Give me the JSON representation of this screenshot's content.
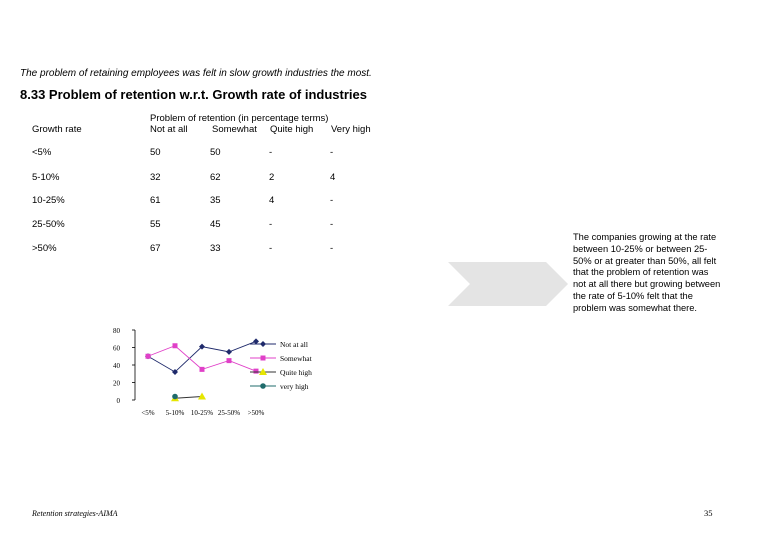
{
  "intro_text": "The problem of retaining employees was felt in slow growth industries the most.",
  "section_title": "8.33 Problem of retention w.r.t. Growth rate of industries",
  "table": {
    "super_header": "Problem of retention (in percentage terms)",
    "headers": [
      "Growth rate",
      "Not at all",
      "Somewhat",
      "Quite high",
      "Very high"
    ],
    "rows": [
      [
        "<5%",
        "50",
        "50",
        "-",
        "-"
      ],
      [
        "5-10%",
        "32",
        "62",
        "2",
        "4"
      ],
      [
        "10-25%",
        "61",
        "35",
        "4",
        "-"
      ],
      [
        "25-50%",
        "55",
        "45",
        "-",
        "-"
      ],
      [
        ">50%",
        "67",
        "33",
        "-",
        "-"
      ]
    ]
  },
  "note_text": "The companies growing at the rate between 10-25% or between 25-50% or at greater than 50%, all felt that the problem of retention was not at all there but growing between the rate of 5-10% felt that the problem was somewhat there.",
  "footer": {
    "left": "Retention strategies-AIMA",
    "page_number": "35"
  },
  "colors": {
    "not_at_all": "#1f2a6b",
    "somewhat": "#e040c8",
    "quite_high": "#e6e600",
    "very_high": "#1f6b6b",
    "arrow": "#e4e4e4"
  },
  "chart_data": {
    "type": "line",
    "categories": [
      "<5%",
      "5-10%",
      "10-25%",
      "25-50%",
      ">50%"
    ],
    "y_ticks": [
      "80",
      "60",
      "40",
      "20",
      "0"
    ],
    "ylim": [
      0,
      80
    ],
    "legend_position": "right",
    "series": [
      {
        "name": "Not at all",
        "values": [
          50,
          32,
          61,
          55,
          67
        ],
        "color": "#1f2a6b",
        "marker": "diamond"
      },
      {
        "name": "Somewhat",
        "values": [
          50,
          62,
          35,
          45,
          33
        ],
        "color": "#e040c8",
        "marker": "square"
      },
      {
        "name": "Quite high",
        "values": [
          null,
          2,
          4,
          null,
          null
        ],
        "color": "#e6e600",
        "marker": "triangle"
      },
      {
        "name": "very high",
        "values": [
          null,
          4,
          null,
          null,
          null
        ],
        "color": "#1f6b6b",
        "marker": "circle"
      }
    ]
  }
}
